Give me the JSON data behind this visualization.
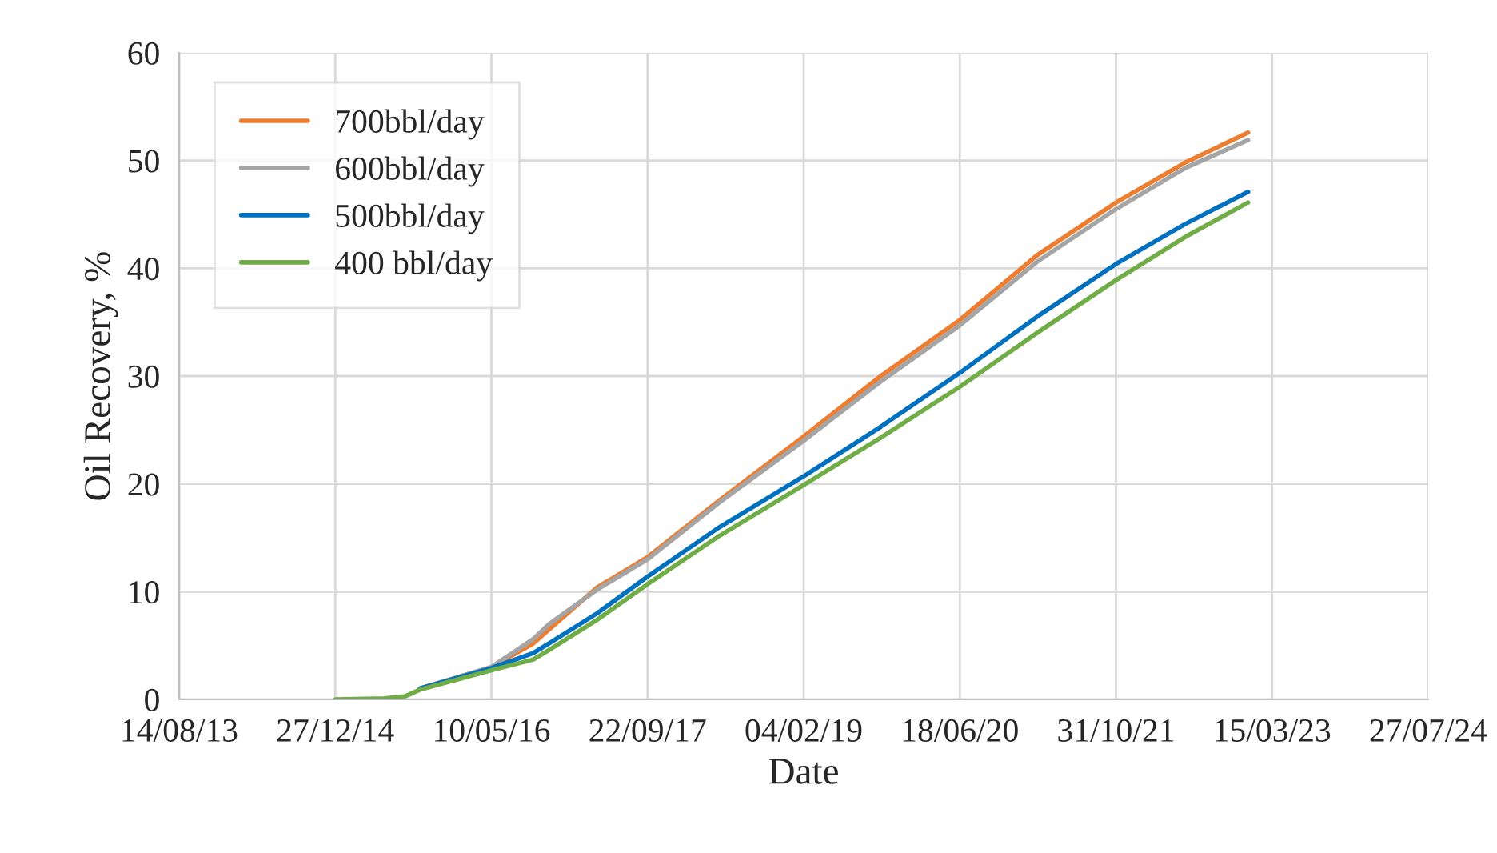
{
  "chart_data": {
    "type": "line",
    "xlabel": "Date",
    "ylabel": "Oil Recovery, %",
    "x": [
      "2014-12-27",
      "2015-06-03",
      "2015-08-09",
      "2015-09-24",
      "2016-05-10",
      "2016-09-21",
      "2016-11-11",
      "2017-04-14",
      "2017-09-22",
      "2018-05-11",
      "2019-02-04",
      "2019-10-09",
      "2020-06-18",
      "2021-02-20",
      "2021-10-31",
      "2022-06-09",
      "2022-12-28"
    ],
    "series": [
      {
        "name": "700bbl/day",
        "color": "#ed7d31",
        "values": [
          null,
          null,
          null,
          1.0,
          3.0,
          5.2,
          6.5,
          10.4,
          13.2,
          18.5,
          24.4,
          30.0,
          35.2,
          41.2,
          46.1,
          49.8,
          52.6
        ]
      },
      {
        "name": "600bbl/day",
        "color": "#a5a5a5",
        "values": [
          null,
          null,
          null,
          1.0,
          3.0,
          5.6,
          7.0,
          10.2,
          13.0,
          18.3,
          24.0,
          29.5,
          34.7,
          40.6,
          45.5,
          49.3,
          51.9
        ]
      },
      {
        "name": "500bbl/day",
        "color": "#0070c0",
        "values": [
          null,
          null,
          null,
          1.0,
          2.9,
          4.3,
          5.2,
          8.0,
          11.4,
          16.0,
          20.7,
          25.3,
          30.3,
          35.5,
          40.4,
          44.1,
          47.1
        ]
      },
      {
        "name": "400 bbl/day",
        "color": "#70ad47",
        "values": [
          0,
          0.1,
          0.3,
          0.9,
          2.7,
          3.7,
          4.6,
          7.4,
          10.7,
          15.2,
          19.9,
          24.3,
          29.0,
          34.0,
          38.9,
          42.9,
          46.1
        ]
      }
    ],
    "xlim": [
      "2013-08-14",
      "2024-07-27"
    ],
    "xticks": [
      {
        "value": "2013-08-14",
        "label": "14/08/13"
      },
      {
        "value": "2014-12-27",
        "label": "27/12/14"
      },
      {
        "value": "2016-05-10",
        "label": "10/05/16"
      },
      {
        "value": "2017-09-22",
        "label": "22/09/17"
      },
      {
        "value": "2019-02-04",
        "label": "04/02/19"
      },
      {
        "value": "2020-06-18",
        "label": "18/06/20"
      },
      {
        "value": "2021-10-31",
        "label": "31/10/21"
      },
      {
        "value": "2023-03-15",
        "label": "15/03/23"
      },
      {
        "value": "2024-07-27",
        "label": "27/07/24"
      }
    ],
    "ylim": [
      0,
      60
    ],
    "yticks": [
      0,
      10,
      20,
      30,
      40,
      50,
      60
    ],
    "grid": true,
    "legend": "top left",
    "marker": "none",
    "line_style": "solid"
  }
}
